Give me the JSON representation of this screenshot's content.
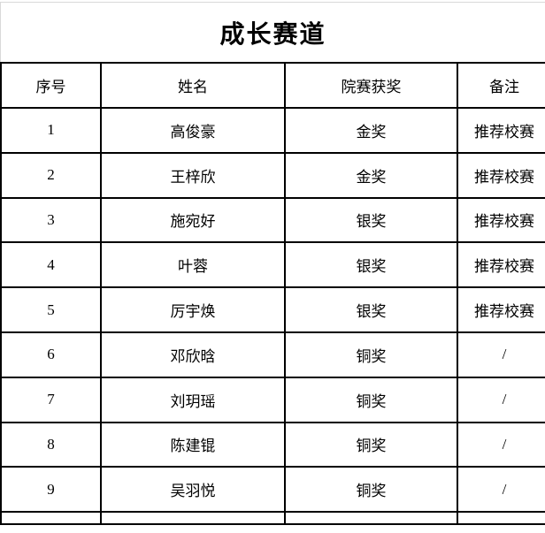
{
  "title": "成长赛道",
  "table": {
    "columns": [
      "序号",
      "姓名",
      "院赛获奖",
      "备注"
    ],
    "rows": [
      {
        "no": "1",
        "name": "高俊豪",
        "award": "金奖",
        "note": "推荐校赛"
      },
      {
        "no": "2",
        "name": "王梓欣",
        "award": "金奖",
        "note": "推荐校赛"
      },
      {
        "no": "3",
        "name": "施宛好",
        "award": "银奖",
        "note": "推荐校赛"
      },
      {
        "no": "4",
        "name": "叶蓉",
        "award": "银奖",
        "note": "推荐校赛"
      },
      {
        "no": "5",
        "name": "厉宇焕",
        "award": "银奖",
        "note": "推荐校赛"
      },
      {
        "no": "6",
        "name": "邓欣晗",
        "award": "铜奖",
        "note": "/"
      },
      {
        "no": "7",
        "name": "刘玥瑶",
        "award": "铜奖",
        "note": "/"
      },
      {
        "no": "8",
        "name": "陈建锟",
        "award": "铜奖",
        "note": "/"
      },
      {
        "no": "9",
        "name": "吴羽悦",
        "award": "铜奖",
        "note": "/"
      }
    ]
  }
}
